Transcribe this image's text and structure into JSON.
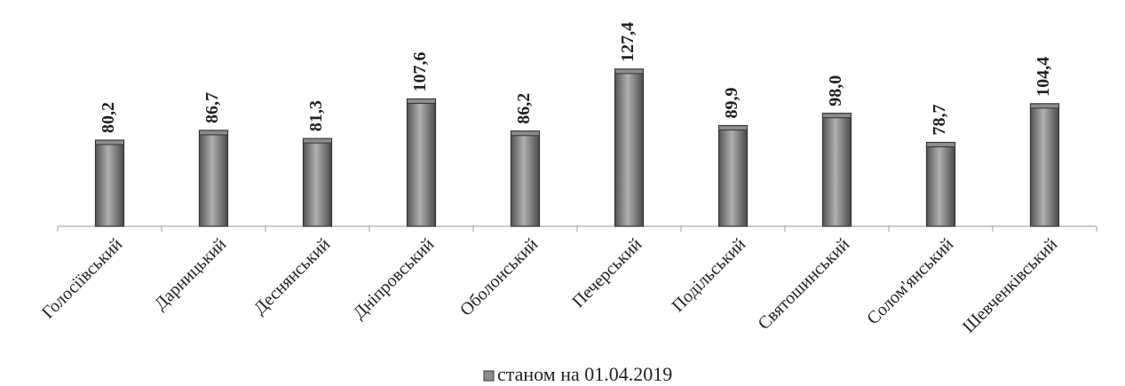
{
  "chart_data": {
    "type": "bar",
    "categories": [
      "Голосіївський",
      "Дарницький",
      "Деснянський",
      "Дніпровський",
      "Оболонський",
      "Печерський",
      "Подільський",
      "Святошинський",
      "Солом'янський",
      "Шевченківський"
    ],
    "series": [
      {
        "name": "станом на 01.04.2019",
        "color": "#8c8c8c",
        "values": [
          80.2,
          86.7,
          81.3,
          107.6,
          86.2,
          127.4,
          89.9,
          98.0,
          78.7,
          104.4
        ],
        "value_labels": [
          "80,2",
          "86,7",
          "81,3",
          "107,6",
          "86,2",
          "127,4",
          "89,9",
          "98,0",
          "78,7",
          "104,4"
        ]
      }
    ],
    "ylim": [
      23,
      135
    ],
    "legend": "bottom"
  }
}
